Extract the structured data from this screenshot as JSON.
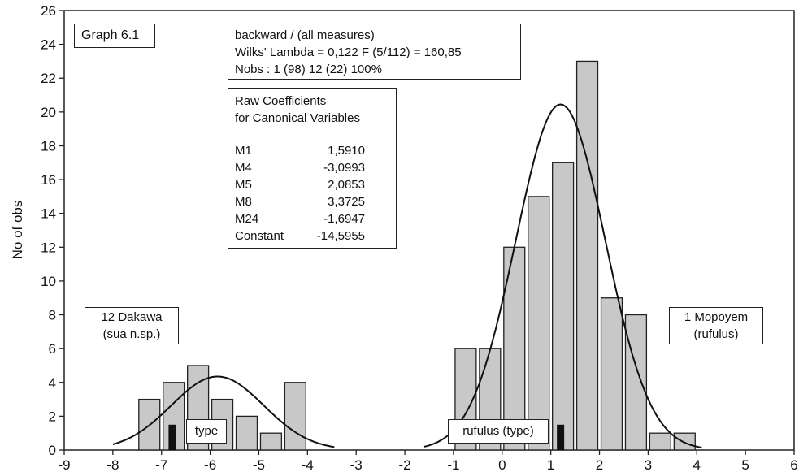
{
  "chart_data": {
    "type": "bar",
    "xlabel": "",
    "ylabel": "No of obs",
    "xlim": [
      -9,
      6
    ],
    "ylim": [
      0,
      26
    ],
    "xticks": [
      "-9",
      "-8",
      "-7",
      "-6",
      "-5",
      "-4",
      "-3",
      "-2",
      "-1",
      "0",
      "1",
      "2",
      "3",
      "4",
      "5",
      "6"
    ],
    "yticks": [
      "0",
      "2",
      "4",
      "6",
      "8",
      "10",
      "12",
      "14",
      "16",
      "18",
      "20",
      "22",
      "24",
      "26"
    ],
    "grid": false,
    "bin_width": 0.5,
    "series": [
      {
        "bins": [
          {
            "x0": -7.5,
            "value": 3
          },
          {
            "x0": -7.0,
            "value": 4
          },
          {
            "x0": -6.5,
            "value": 5
          },
          {
            "x0": -6.0,
            "value": 3
          },
          {
            "x0": -5.5,
            "value": 2
          },
          {
            "x0": -5.0,
            "value": 1
          },
          {
            "x0": -4.5,
            "value": 4
          }
        ],
        "normal_curve": {
          "mean": -5.85,
          "sd": 0.95,
          "peak": 4.35,
          "from": -8.0,
          "to": -3.45
        }
      },
      {
        "bins": [
          {
            "x0": -1.0,
            "value": 6
          },
          {
            "x0": -0.5,
            "value": 6
          },
          {
            "x0": 0.0,
            "value": 12
          },
          {
            "x0": 0.5,
            "value": 15
          },
          {
            "x0": 1.0,
            "value": 17
          },
          {
            "x0": 1.5,
            "value": 23
          },
          {
            "x0": 2.0,
            "value": 9
          },
          {
            "x0": 2.5,
            "value": 8
          },
          {
            "x0": 3.0,
            "value": 1
          },
          {
            "x0": 3.5,
            "value": 1
          }
        ],
        "normal_curve": {
          "mean": 1.2,
          "sd": 0.92,
          "peak": 20.45,
          "from": -1.6,
          "to": 4.1
        }
      }
    ],
    "type_markers": [
      {
        "x": -6.78,
        "value": 1.5
      },
      {
        "x": 1.2,
        "value": 1.5
      }
    ]
  },
  "graph_label": "Graph 6.1",
  "info_box": {
    "line1": "backward / (all measures)",
    "line2": "Wilks' Lambda = 0,122   F (5/112) = 160,85",
    "line3": "Nobs : 1 (98)   12 (22)   100%"
  },
  "coef_box": {
    "title1": "Raw Coefficients",
    "title2": "for Canonical Variables",
    "rows": [
      {
        "name": "M1",
        "value": "1,5910"
      },
      {
        "name": "M4",
        "value": "-3,0993"
      },
      {
        "name": "M5",
        "value": "2,0853"
      },
      {
        "name": "M8",
        "value": "3,3725"
      },
      {
        "name": "M24",
        "value": "-1,6947"
      },
      {
        "name": "Constant",
        "value": "-14,5955"
      }
    ]
  },
  "group_left": {
    "line1": "12 Dakawa",
    "line2": "(sua n.sp.)"
  },
  "group_right": {
    "line1": "1 Mopoyem",
    "line2": "(rufulus)"
  },
  "type_label_left": "type",
  "type_label_right": "rufulus (type)",
  "colors": {
    "bar_fill": "#c8c8c8",
    "bar_stroke": "#222222",
    "curve": "#111111",
    "marker": "#111111"
  }
}
